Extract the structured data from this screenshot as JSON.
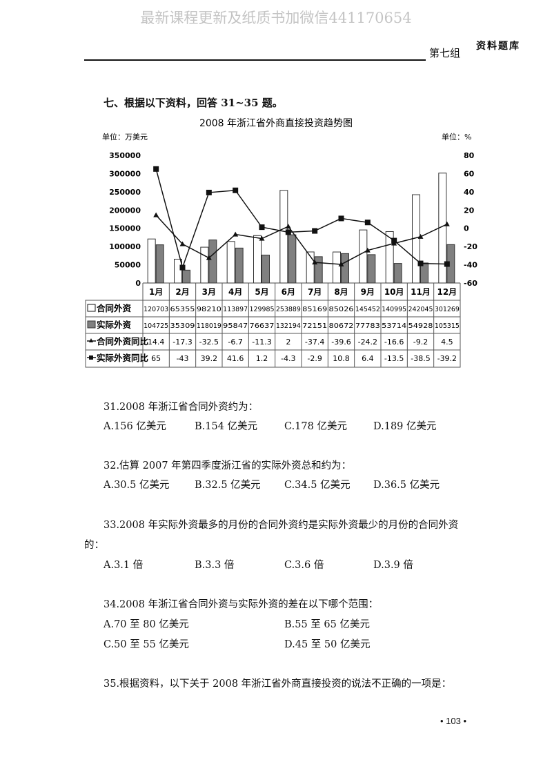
{
  "watermark": "最新课程更新及纸质书加微信441170654",
  "header": {
    "section": "第七组",
    "logo": "资料题库"
  },
  "section_title": "七、根据以下资料，回答 31~35 题。",
  "chart_data": {
    "type": "bar+line",
    "title": "2008 年浙江省外商直接投资趋势图",
    "left_unit": "单位：万美元",
    "right_unit": "单位：%",
    "categories": [
      "1月",
      "2月",
      "3月",
      "4月",
      "5月",
      "6月",
      "7月",
      "8月",
      "9月",
      "10月",
      "11月",
      "12月"
    ],
    "left_ticks": [
      "0",
      "50000",
      "100000",
      "150000",
      "200000",
      "250000",
      "300000",
      "350000"
    ],
    "right_ticks": [
      "-60",
      "-40",
      "-20",
      "0",
      "20",
      "40",
      "60",
      "80"
    ],
    "ylim_left": [
      0,
      350000
    ],
    "ylim_right": [
      -60,
      80
    ],
    "series": [
      {
        "name": "合同外资",
        "kind": "bar",
        "axis": "left",
        "color": "#ffffff",
        "values": [
          120703,
          65355,
          98210,
          113897,
          129985,
          253889,
          85169,
          85026,
          145452,
          140995,
          242045,
          301269
        ]
      },
      {
        "name": "实际外资",
        "kind": "bar",
        "axis": "left",
        "color": "#808080",
        "values": [
          104725,
          35309,
          118019,
          95847,
          76637,
          132194,
          72151,
          80672,
          77783,
          53714,
          54928,
          105315
        ]
      },
      {
        "name": "合同外资同比",
        "kind": "line",
        "marker": "triangle",
        "axis": "right",
        "values": [
          14.4,
          -17.3,
          -32.5,
          -6.7,
          -11.3,
          2,
          -37.4,
          -39.6,
          -24.2,
          -16.6,
          -9.2,
          4.5
        ]
      },
      {
        "name": "实际外资同比",
        "kind": "line",
        "marker": "square",
        "axis": "right",
        "values": [
          65,
          -43,
          39.2,
          41.6,
          1.2,
          -4.3,
          -2.9,
          10.8,
          6.4,
          -13.5,
          -38.5,
          -39.2
        ]
      }
    ],
    "grid": false
  },
  "questions": [
    {
      "stem": "31.2008 年浙江省合同外资约为：",
      "options": [
        "A.156 亿美元",
        "B.154 亿美元",
        "C.178 亿美元",
        "D.189 亿美元"
      ]
    },
    {
      "stem": "32.估算 2007 年第四季度浙江省的实际外资总和约为：",
      "options": [
        "A.30.5 亿美元",
        "B.32.5 亿美元",
        "C.34.5 亿美元",
        "D.36.5 亿美元"
      ]
    },
    {
      "stem": "33.2008 年实际外资最多的月份的合同外资约是实际外资最少的月份的合同外资",
      "stem2": "的：",
      "options": [
        "A.3.1 倍",
        "B.3.3 倍",
        "C.3.6 倍",
        "D.3.9 倍"
      ]
    },
    {
      "stem": "34.2008 年浙江省合同外资与实际外资的差在以下哪个范围：",
      "options": [
        "A.70 至 80 亿美元",
        "B.55 至 65 亿美元",
        "C.50 至 55 亿美元",
        "D.45 至 50 亿美元"
      ]
    },
    {
      "stem": "35.根据资料，以下关于 2008 年浙江省外商直接投资的说法不正确的一项是："
    }
  ],
  "page_number": "• 103 •"
}
